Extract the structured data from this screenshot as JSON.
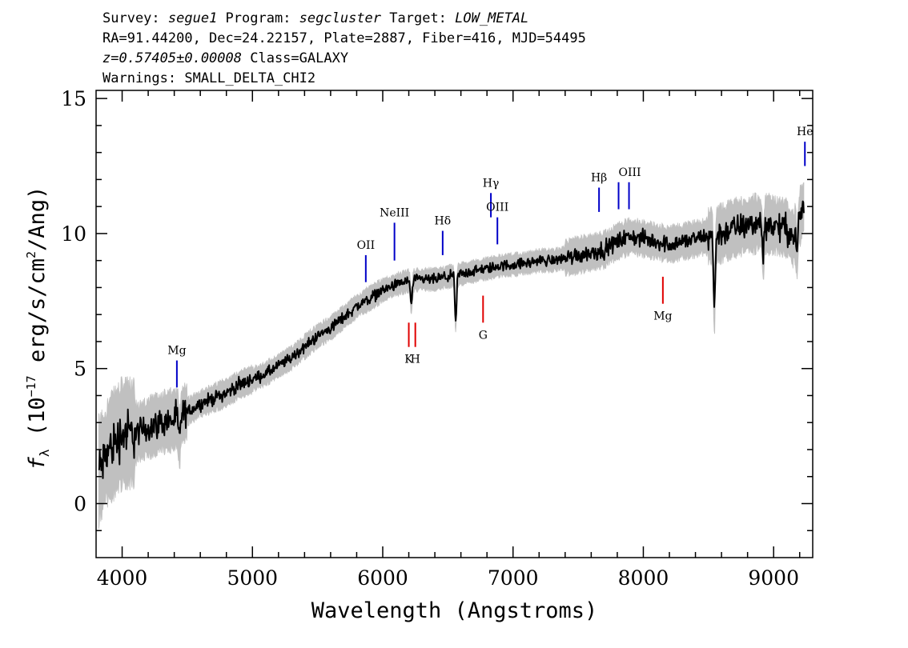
{
  "header": {
    "line1_a": "Survey: ",
    "line1_b": "segue1",
    "line1_c": " Program: ",
    "line1_d": "segcluster",
    "line1_e": " Target: ",
    "line1_f": "LOW_METAL",
    "line2": "RA=91.44200, Dec=24.22157, Plate=2887, Fiber=416, MJD=54495",
    "line3_a": "z=0.57405±0.00008",
    "line3_b": " Class=GALAXY",
    "line4": "Warnings: SMALL_DELTA_CHI2"
  },
  "chart_data": {
    "type": "line",
    "xlabel": "Wavelength (Angstroms)",
    "ylabel_f": "f",
    "ylabel_sub": "λ",
    "ylabel_a": " (10",
    "ylabel_exp1": "−17",
    "ylabel_b": " erg/s/cm",
    "ylabel_exp2": "2",
    "ylabel_c": "/Ang)",
    "xlim": [
      3800,
      9300
    ],
    "ylim": [
      -2,
      15.3
    ],
    "xticks": [
      4000,
      5000,
      6000,
      7000,
      8000,
      9000
    ],
    "yticks": [
      0,
      5,
      10,
      15
    ],
    "xtick_labels": [
      "4000",
      "5000",
      "6000",
      "7000",
      "8000",
      "9000"
    ],
    "ytick_labels": [
      "0",
      "5",
      "10",
      "15"
    ],
    "continuum": [
      [
        3820,
        1.2
      ],
      [
        3900,
        2.0
      ],
      [
        4000,
        2.6
      ],
      [
        4100,
        2.6
      ],
      [
        4200,
        2.8
      ],
      [
        4300,
        3.0
      ],
      [
        4400,
        3.1
      ],
      [
        4500,
        3.4
      ],
      [
        4600,
        3.7
      ],
      [
        4700,
        3.9
      ],
      [
        4800,
        4.1
      ],
      [
        4900,
        4.4
      ],
      [
        5000,
        4.6
      ],
      [
        5100,
        4.8
      ],
      [
        5200,
        5.1
      ],
      [
        5300,
        5.4
      ],
      [
        5400,
        5.8
      ],
      [
        5500,
        6.2
      ],
      [
        5600,
        6.5
      ],
      [
        5700,
        6.9
      ],
      [
        5800,
        7.3
      ],
      [
        5900,
        7.6
      ],
      [
        6000,
        7.9
      ],
      [
        6100,
        8.1
      ],
      [
        6200,
        8.25
      ],
      [
        6300,
        8.3
      ],
      [
        6400,
        8.3
      ],
      [
        6500,
        8.4
      ],
      [
        6600,
        8.5
      ],
      [
        6700,
        8.6
      ],
      [
        6800,
        8.7
      ],
      [
        6900,
        8.8
      ],
      [
        7000,
        8.85
      ],
      [
        7100,
        8.9
      ],
      [
        7200,
        9.0
      ],
      [
        7300,
        9.0
      ],
      [
        7400,
        9.1
      ],
      [
        7500,
        9.2
      ],
      [
        7600,
        9.3
      ],
      [
        7700,
        9.4
      ],
      [
        7800,
        9.7
      ],
      [
        7900,
        9.9
      ],
      [
        8000,
        9.8
      ],
      [
        8100,
        9.7
      ],
      [
        8200,
        9.6
      ],
      [
        8300,
        9.7
      ],
      [
        8400,
        9.8
      ],
      [
        8500,
        9.9
      ],
      [
        8600,
        10.0
      ],
      [
        8700,
        10.2
      ],
      [
        8800,
        10.3
      ],
      [
        8900,
        10.4
      ],
      [
        9000,
        10.3
      ],
      [
        9100,
        10.2
      ],
      [
        9150,
        9.8
      ],
      [
        9200,
        10.6
      ],
      [
        9230,
        11.0
      ]
    ],
    "absorption_dips": [
      {
        "x": 6560,
        "depth": 1.8
      },
      {
        "x": 8545,
        "depth": 2.8
      },
      {
        "x": 6220,
        "depth": 0.9
      },
      {
        "x": 8920,
        "depth": 1.2
      },
      {
        "x": 9180,
        "depth": 1.0
      },
      {
        "x": 4440,
        "depth": 0.9
      }
    ],
    "line_markers": [
      {
        "label": "Mg",
        "x": 4420,
        "y0": 4.3,
        "y1": 5.3,
        "color": "#0000c8",
        "label_pos": "above"
      },
      {
        "label": "OII",
        "x": 5870,
        "y0": 8.2,
        "y1": 9.2,
        "color": "#0000c8",
        "label_pos": "above"
      },
      {
        "label": "NeIII",
        "x": 6090,
        "y0": 9.0,
        "y1": 10.4,
        "color": "#0000c8",
        "label_pos": "above"
      },
      {
        "label": "Hδ",
        "x": 6460,
        "y0": 9.2,
        "y1": 10.1,
        "color": "#0000c8",
        "label_pos": "above"
      },
      {
        "label": "Hγ",
        "x": 6830,
        "y0": 10.6,
        "y1": 11.5,
        "color": "#0000c8",
        "label_pos": "above"
      },
      {
        "label": "OIII",
        "x": 6880,
        "y0": 9.6,
        "y1": 10.6,
        "color": "#0000c8",
        "label_pos": "above"
      },
      {
        "label": "Hβ",
        "x": 7660,
        "y0": 10.8,
        "y1": 11.7,
        "color": "#0000c8",
        "label_pos": "above"
      },
      {
        "label": "OIII",
        "x": 7810,
        "y0": 10.9,
        "y1": 11.9,
        "color": "#0000c8",
        "label_pos": "above",
        "label_dx": 14
      },
      {
        "label": "",
        "x": 7890,
        "y0": 10.9,
        "y1": 11.9,
        "color": "#0000c8",
        "label_pos": "none"
      },
      {
        "label": "He",
        "x": 9240,
        "y0": 12.5,
        "y1": 13.4,
        "color": "#0000c8",
        "label_pos": "above"
      },
      {
        "label": "K",
        "x": 6200,
        "y0": 5.8,
        "y1": 6.7,
        "color": "#e00000",
        "label_pos": "below"
      },
      {
        "label": "H",
        "x": 6250,
        "y0": 5.8,
        "y1": 6.7,
        "color": "#e00000",
        "label_pos": "below"
      },
      {
        "label": "G",
        "x": 6770,
        "y0": 6.7,
        "y1": 7.7,
        "color": "#e00000",
        "label_pos": "below"
      },
      {
        "label": "Mg",
        "x": 8150,
        "y0": 7.4,
        "y1": 8.4,
        "color": "#e00000",
        "label_pos": "below"
      }
    ],
    "colors": {
      "spectrum": "#000000",
      "error": "#c0c0c0",
      "blue_lines": "#0000c8",
      "red_lines": "#e00000"
    }
  }
}
